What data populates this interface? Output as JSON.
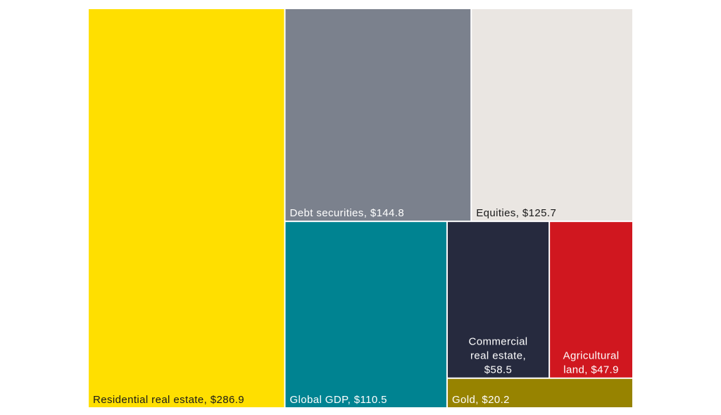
{
  "chart_data": {
    "type": "treemap",
    "title": "",
    "units": "$",
    "items": [
      {
        "label": "Residential real estate, $286.9",
        "name": "Residential real estate",
        "value": 286.9,
        "color": "#FFDF00",
        "text_color": "#1a1a1a",
        "lines": [
          "Residential real estate, $286.9"
        ]
      },
      {
        "label": "Debt securities, $144.8",
        "name": "Debt securities",
        "value": 144.8,
        "color": "#7B818D",
        "text_color": "#ffffff",
        "lines": [
          "Debt securities, $144.8"
        ]
      },
      {
        "label": "Equities, $125.7",
        "name": "Equities",
        "value": 125.7,
        "color": "#EAE6E2",
        "text_color": "#1a1a1a",
        "lines": [
          "Equities, $125.7"
        ]
      },
      {
        "label": "Global GDP, $110.5",
        "name": "Global GDP",
        "value": 110.5,
        "color": "#008391",
        "text_color": "#ffffff",
        "lines": [
          "Global GDP, $110.5"
        ]
      },
      {
        "label": "Commercial real estate, $58.5",
        "name": "Commercial real estate",
        "value": 58.5,
        "color": "#262A3E",
        "text_color": "#ffffff",
        "lines": [
          "Commercial",
          "real estate,",
          "$58.5"
        ]
      },
      {
        "label": "Agricultural land, $47.9",
        "name": "Agricultural land",
        "value": 47.9,
        "color": "#D0171F",
        "text_color": "#ffffff",
        "lines": [
          "Agricultural",
          "land, $47.9"
        ]
      },
      {
        "label": "Gold, $20.2",
        "name": "Gold",
        "value": 20.2,
        "color": "#978300",
        "text_color": "#ffffff",
        "lines": [
          "Gold, $20.2"
        ]
      }
    ]
  }
}
